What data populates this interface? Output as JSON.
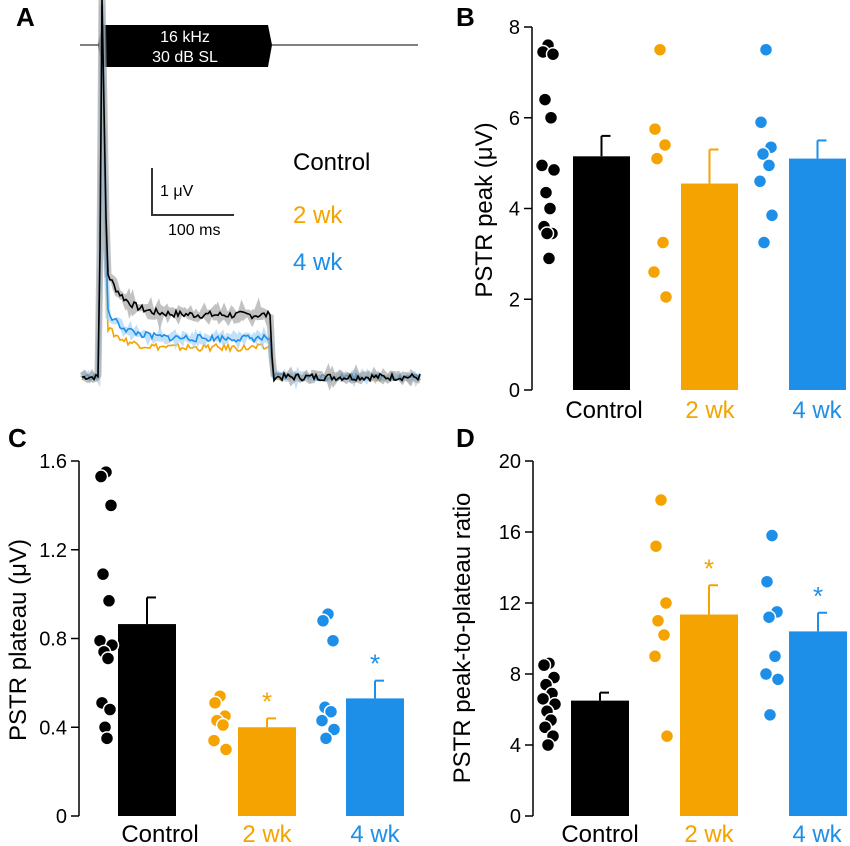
{
  "colors": {
    "Control": "#000000",
    "2 wk": "#f5a300",
    "4 wk": "#1e8fe8"
  },
  "chart_data": [
    {
      "panel": "A",
      "type": "line",
      "title": "",
      "stimulus": {
        "line1": "16 kHz",
        "line2": "30 dB SL"
      },
      "scale_bar": {
        "y_label": "1 μV",
        "x_label": "100 ms"
      },
      "legend": [
        "Control",
        "2 wk",
        "4 wk"
      ],
      "series": [
        {
          "name": "Control",
          "peak": 5.2,
          "plateau": 0.85,
          "baseline": 0.0
        },
        {
          "name": "2 wk",
          "peak": 4.6,
          "plateau": 0.4,
          "baseline": 0.0
        },
        {
          "name": "4 wk",
          "peak": 5.1,
          "plateau": 0.53,
          "baseline": 0.0
        }
      ]
    },
    {
      "panel": "B",
      "type": "bar",
      "ylabel": "PSTR peak (μV)",
      "categories": [
        "Control",
        "2 wk",
        "4 wk"
      ],
      "values": [
        5.15,
        4.55,
        5.1
      ],
      "errors": [
        0.45,
        0.75,
        0.4
      ],
      "ylim": [
        0,
        8
      ],
      "yticks": [
        "0",
        "2",
        "4",
        "6",
        "8"
      ],
      "points": [
        [
          7.6,
          7.45,
          7.4,
          6.4,
          6.0,
          4.95,
          4.85,
          4.35,
          4.0,
          3.6,
          3.45,
          3.45,
          2.9
        ],
        [
          7.5,
          5.75,
          5.4,
          5.1,
          3.25,
          2.6,
          2.05
        ],
        [
          7.5,
          5.9,
          5.35,
          5.2,
          4.95,
          4.6,
          3.85,
          3.25
        ]
      ],
      "significance": [
        "",
        "",
        ""
      ]
    },
    {
      "panel": "C",
      "type": "bar",
      "ylabel": "PSTR plateau (μV)",
      "categories": [
        "Control",
        "2 wk",
        "4 wk"
      ],
      "values": [
        0.865,
        0.4,
        0.53
      ],
      "errors": [
        0.12,
        0.04,
        0.08
      ],
      "ylim": [
        0,
        1.6
      ],
      "yticks": [
        "0",
        "0.4",
        "0.8",
        "1.2",
        "1.6"
      ],
      "points": [
        [
          1.55,
          1.53,
          1.4,
          1.09,
          0.97,
          0.79,
          0.77,
          0.74,
          0.71,
          0.51,
          0.48,
          0.4,
          0.35
        ],
        [
          0.54,
          0.51,
          0.45,
          0.43,
          0.41,
          0.34,
          0.3
        ],
        [
          0.91,
          0.88,
          0.79,
          0.49,
          0.47,
          0.43,
          0.39,
          0.35
        ]
      ],
      "significance": [
        "",
        "*",
        "*"
      ]
    },
    {
      "panel": "D",
      "type": "bar",
      "ylabel": "PSTR peak-to-plateau ratio",
      "categories": [
        "Control",
        "2 wk",
        "4 wk"
      ],
      "values": [
        6.5,
        11.35,
        10.4
      ],
      "errors": [
        0.45,
        1.65,
        1.05
      ],
      "ylim": [
        0,
        20
      ],
      "yticks": [
        "0",
        "4",
        "8",
        "12",
        "16",
        "20"
      ],
      "points": [
        [
          8.6,
          8.5,
          7.8,
          7.4,
          6.9,
          6.6,
          6.3,
          5.9,
          5.4,
          5.0,
          4.5,
          4.0
        ],
        [
          17.8,
          15.2,
          12.0,
          11.0,
          10.2,
          9.0,
          4.5
        ],
        [
          15.8,
          13.2,
          11.5,
          11.2,
          9.0,
          8.0,
          7.7,
          5.7
        ]
      ],
      "significance": [
        "",
        "*",
        "*"
      ]
    }
  ]
}
